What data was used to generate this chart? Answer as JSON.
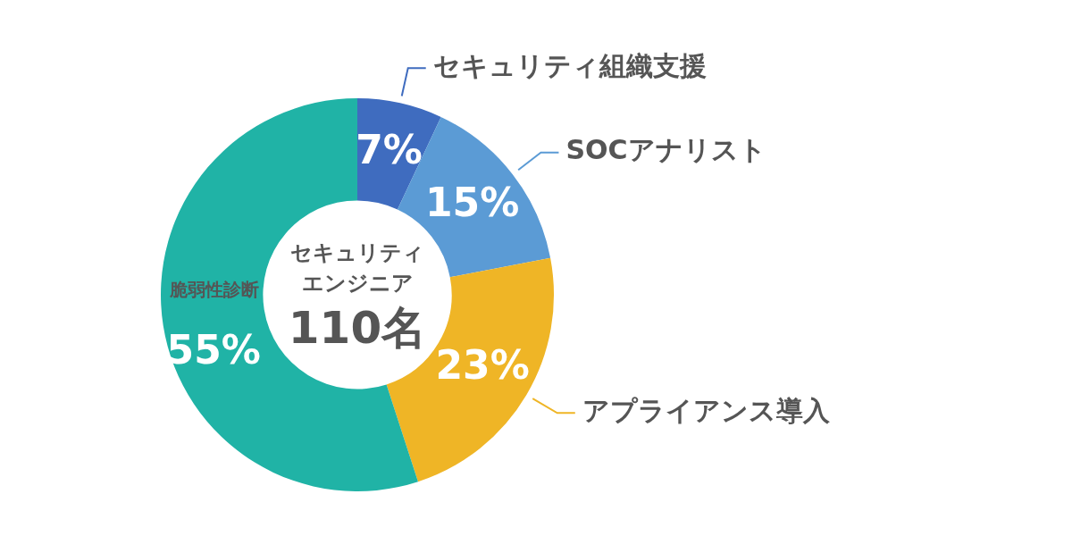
{
  "chart_data": {
    "type": "donut",
    "categories": [
      "セキュリティ組織支援",
      "SOCアナリスト",
      "アプライアンス導入",
      "脆弱性診断"
    ],
    "values": [
      7,
      15,
      23,
      55
    ],
    "colors": [
      "#3f6cbf",
      "#5b9bd5",
      "#efb526",
      "#20b3a6"
    ],
    "value_labels": [
      "7%",
      "15%",
      "23%",
      "55%"
    ],
    "annotations": [
      "セキュリティ",
      "エンジニア",
      "110名"
    ],
    "legend": false
  }
}
